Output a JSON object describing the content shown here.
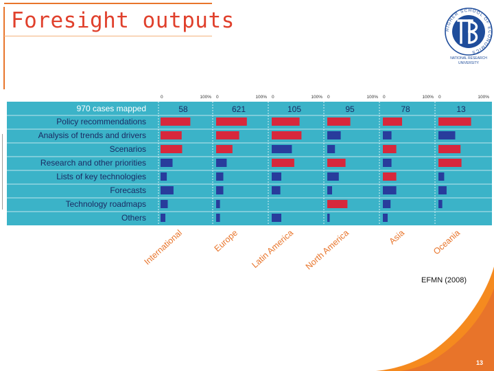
{
  "slide": {
    "title": "Foresight outputs",
    "source": "EFMN (2008)",
    "page_number": "13"
  },
  "logo": {
    "ring_text": "HIGHER SCHOOL OF ECONOMICS",
    "caption_line1": "NATIONAL RESEARCH",
    "caption_line2": "UNIVERSITY"
  },
  "colors": {
    "accent": "#e8742a",
    "title": "#e0402c",
    "chart_background": "#3bb3c8",
    "red_bar": "#d7283c",
    "blue_bar": "#283c9c",
    "region_label": "#e8742a",
    "logo_blue": "#1f4d9b"
  },
  "chart_data": {
    "type": "bar",
    "orientation": "horizontal",
    "panels": [
      {
        "region": "International",
        "cases": 58,
        "values": [
          62,
          44,
          45,
          25,
          13,
          27,
          15,
          10
        ]
      },
      {
        "region": "Europe",
        "cases": 621,
        "values": [
          64,
          48,
          34,
          22,
          15,
          15,
          8,
          8
        ]
      },
      {
        "region": "Latin America",
        "cases": 105,
        "values": [
          58,
          62,
          42,
          47,
          20,
          18,
          0,
          20
        ]
      },
      {
        "region": "North America",
        "cases": 95,
        "values": [
          48,
          28,
          16,
          38,
          24,
          10,
          42,
          5
        ]
      },
      {
        "region": "Asia",
        "cases": 78,
        "values": [
          40,
          18,
          28,
          18,
          28,
          28,
          16,
          10
        ]
      },
      {
        "region": "Oceania",
        "cases": 13,
        "values": [
          68,
          35,
          46,
          48,
          12,
          17,
          8,
          0
        ]
      }
    ],
    "header_label": "970 cases mapped",
    "categories": [
      "Policy recommendations",
      "Analysis of trends and drivers",
      "Scenarios",
      "Research and other priorities",
      "Lists of key technologies",
      "Forecasts",
      "Technology roadmaps",
      "Others"
    ],
    "highlight_rule": "Within each region, the three most frequent outputs are drawn in red; the rest in blue.",
    "axis_min_label": "0",
    "axis_max_label": "100%",
    "xlim": [
      0,
      100
    ],
    "unit": "% of cases"
  }
}
